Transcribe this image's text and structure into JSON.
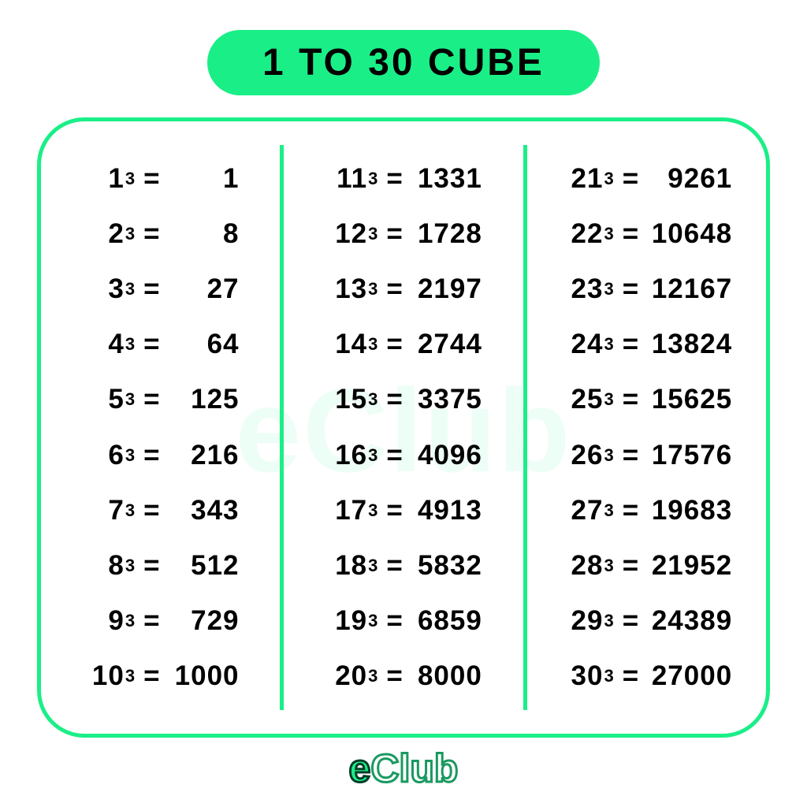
{
  "title": "1 TO 30 CUBE",
  "watermark": "eClub",
  "logo_e": "e",
  "logo_club": "Club",
  "accent_color": "#1aef87",
  "text_color": "#000000",
  "background_color": "#ffffff",
  "exponent_symbol": "3",
  "equals": "=",
  "columns": [
    {
      "entries": [
        {
          "base": "1",
          "value": "1"
        },
        {
          "base": "2",
          "value": "8"
        },
        {
          "base": "3",
          "value": "27"
        },
        {
          "base": "4",
          "value": "64"
        },
        {
          "base": "5",
          "value": "125"
        },
        {
          "base": "6",
          "value": "216"
        },
        {
          "base": "7",
          "value": "343"
        },
        {
          "base": "8",
          "value": "512"
        },
        {
          "base": "9",
          "value": "729"
        },
        {
          "base": "10",
          "value": "1000"
        }
      ]
    },
    {
      "entries": [
        {
          "base": "11",
          "value": "1331"
        },
        {
          "base": "12",
          "value": "1728"
        },
        {
          "base": "13",
          "value": "2197"
        },
        {
          "base": "14",
          "value": "2744"
        },
        {
          "base": "15",
          "value": "3375"
        },
        {
          "base": "16",
          "value": "4096"
        },
        {
          "base": "17",
          "value": "4913"
        },
        {
          "base": "18",
          "value": "5832"
        },
        {
          "base": "19",
          "value": "6859"
        },
        {
          "base": "20",
          "value": "8000"
        }
      ]
    },
    {
      "entries": [
        {
          "base": "21",
          "value": "9261"
        },
        {
          "base": "22",
          "value": "10648"
        },
        {
          "base": "23",
          "value": "12167"
        },
        {
          "base": "24",
          "value": "13824"
        },
        {
          "base": "25",
          "value": "15625"
        },
        {
          "base": "26",
          "value": "17576"
        },
        {
          "base": "27",
          "value": "19683"
        },
        {
          "base": "28",
          "value": "21952"
        },
        {
          "base": "29",
          "value": "24389"
        },
        {
          "base": "30",
          "value": "27000"
        }
      ]
    }
  ]
}
